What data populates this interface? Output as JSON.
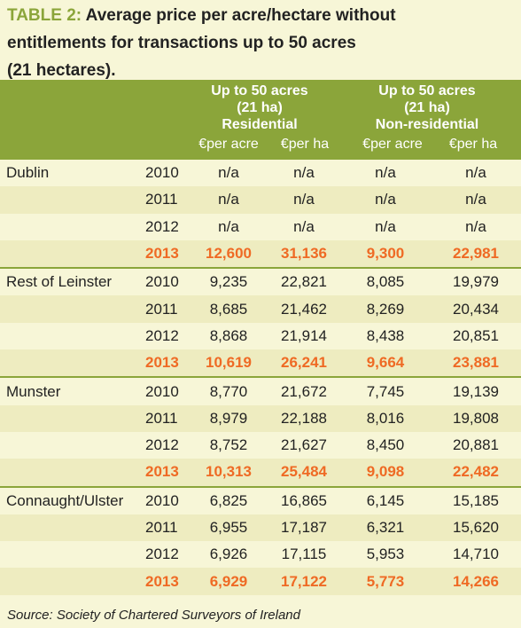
{
  "title": {
    "label": "TABLE 2:",
    "line1": "Average price per acre/hectare without",
    "line2": "entitlements for transactions up to 50 acres",
    "line3": "(21 hectares)."
  },
  "header": {
    "group1": [
      "Up to 50 acres",
      "(21 ha)",
      "Residential"
    ],
    "group2": [
      "Up to 50 acres",
      "(21 ha)",
      "Non-residential"
    ],
    "units": [
      "€per acre",
      "€per ha",
      "€per acre",
      "€per ha"
    ]
  },
  "rows": [
    {
      "region": "Dublin",
      "year": "2010",
      "v": [
        "n/a",
        "n/a",
        "n/a",
        "n/a"
      ]
    },
    {
      "region": "",
      "year": "2011",
      "v": [
        "n/a",
        "n/a",
        "n/a",
        "n/a"
      ]
    },
    {
      "region": "",
      "year": "2012",
      "v": [
        "n/a",
        "n/a",
        "n/a",
        "n/a"
      ]
    },
    {
      "region": "",
      "year": "2013",
      "v": [
        "12,600",
        "31,136",
        "9,300",
        "22,981"
      ]
    },
    {
      "region": "Rest of Leinster",
      "year": "2010",
      "v": [
        "9,235",
        "22,821",
        "8,085",
        "19,979"
      ]
    },
    {
      "region": "",
      "year": "2011",
      "v": [
        "8,685",
        "21,462",
        "8,269",
        "20,434"
      ]
    },
    {
      "region": "",
      "year": "2012",
      "v": [
        "8,868",
        "21,914",
        "8,438",
        "20,851"
      ]
    },
    {
      "region": "",
      "year": "2013",
      "v": [
        "10,619",
        "26,241",
        "9,664",
        "23,881"
      ]
    },
    {
      "region": "Munster",
      "year": "2010",
      "v": [
        "8,770",
        "21,672",
        "7,745",
        "19,139"
      ]
    },
    {
      "region": "",
      "year": "2011",
      "v": [
        "8,979",
        "22,188",
        "8,016",
        "19,808"
      ]
    },
    {
      "region": "",
      "year": "2012",
      "v": [
        "8,752",
        "21,627",
        "8,450",
        "20,881"
      ]
    },
    {
      "region": "",
      "year": "2013",
      "v": [
        "10,313",
        "25,484",
        "9,098",
        "22,482"
      ]
    },
    {
      "region": "Connaught/Ulster",
      "year": "2010",
      "v": [
        "6,825",
        "16,865",
        "6,145",
        "15,185"
      ]
    },
    {
      "region": "",
      "year": "2011",
      "v": [
        "6,955",
        "17,187",
        "6,321",
        "15,620"
      ]
    },
    {
      "region": "",
      "year": "2012",
      "v": [
        "6,926",
        "17,115",
        "5,953",
        "14,710"
      ]
    },
    {
      "region": "",
      "year": "2013",
      "v": [
        "6,929",
        "17,122",
        "5,773",
        "14,266"
      ]
    }
  ],
  "colors": {
    "accent_green": "#8ba53a",
    "highlight_orange": "#ef6a24",
    "background": "#f7f6d7",
    "stripe": "#eeecc0"
  },
  "source": "Source: Society of Chartered Surveyors of Ireland"
}
